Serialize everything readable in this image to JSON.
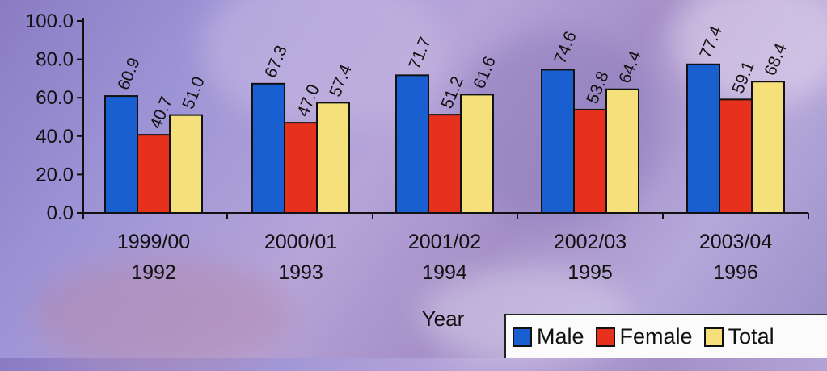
{
  "chart_data": {
    "type": "bar",
    "categories": [
      [
        "1999/00",
        "1992"
      ],
      [
        "2000/01",
        "1993"
      ],
      [
        "2001/02",
        "1994"
      ],
      [
        "2002/03",
        "1995"
      ],
      [
        "2003/04",
        "1996"
      ]
    ],
    "series": [
      {
        "name": "Male",
        "values": [
          60.9,
          67.3,
          71.7,
          74.6,
          77.4
        ],
        "color": "#1a5fd0"
      },
      {
        "name": "Female",
        "values": [
          40.7,
          47.0,
          51.2,
          53.8,
          59.1
        ],
        "color": "#e8311c"
      },
      {
        "name": "Total",
        "values": [
          51.0,
          57.4,
          61.6,
          64.4,
          68.4
        ],
        "color": "#f6e07c"
      }
    ],
    "value_labels": [
      [
        "60.9",
        "67.3",
        "71.7",
        "74.6",
        "77.4"
      ],
      [
        "40.7",
        "47.0",
        "51.2",
        "53.8",
        "59.1"
      ],
      [
        "51.0",
        "57.4",
        "61.6",
        "64.4",
        "68.4"
      ]
    ],
    "xlabel": "Year",
    "ylabel": "",
    "ylim": [
      0,
      100
    ],
    "yticks": [
      "0.0",
      "20.0",
      "40.0",
      "60.0",
      "80.0",
      "100.0"
    ],
    "legend_position": "bottom-right",
    "grid": false
  }
}
